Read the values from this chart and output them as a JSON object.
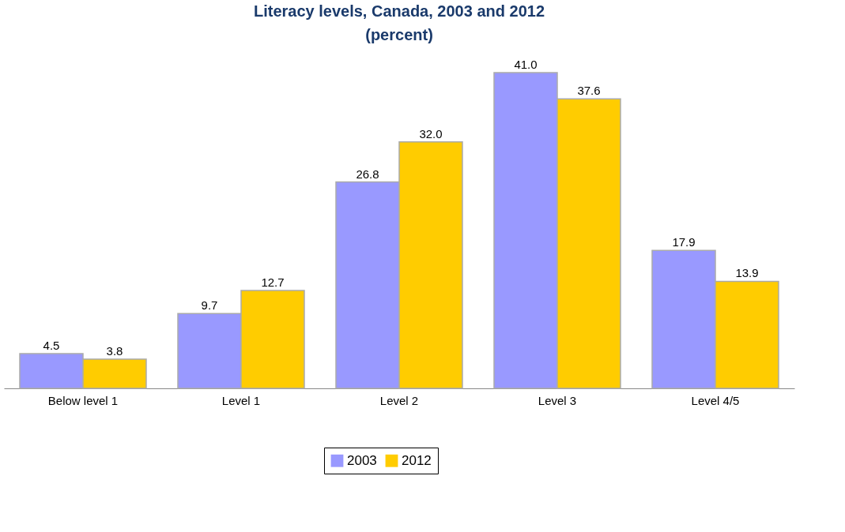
{
  "chart_data": {
    "type": "bar",
    "title": "Literacy levels, Canada, 2003 and 2012",
    "subtitle": "(percent)",
    "categories": [
      "Below level 1",
      "Level 1",
      "Level 2",
      "Level 3",
      "Level 4/5"
    ],
    "series": [
      {
        "name": "2003",
        "color": "#9999ff",
        "values": [
          4.5,
          9.7,
          26.8,
          41.0,
          17.9
        ],
        "value_labels": [
          "4.5",
          "9.7",
          "26.8",
          "41.0",
          "17.9"
        ]
      },
      {
        "name": "2012",
        "color": "#ffcc00",
        "values": [
          3.8,
          12.7,
          32.0,
          37.6,
          13.9
        ],
        "value_labels": [
          "3.8",
          "12.7",
          "32.0",
          "37.6",
          "13.9"
        ]
      }
    ],
    "legend": "bottom"
  }
}
